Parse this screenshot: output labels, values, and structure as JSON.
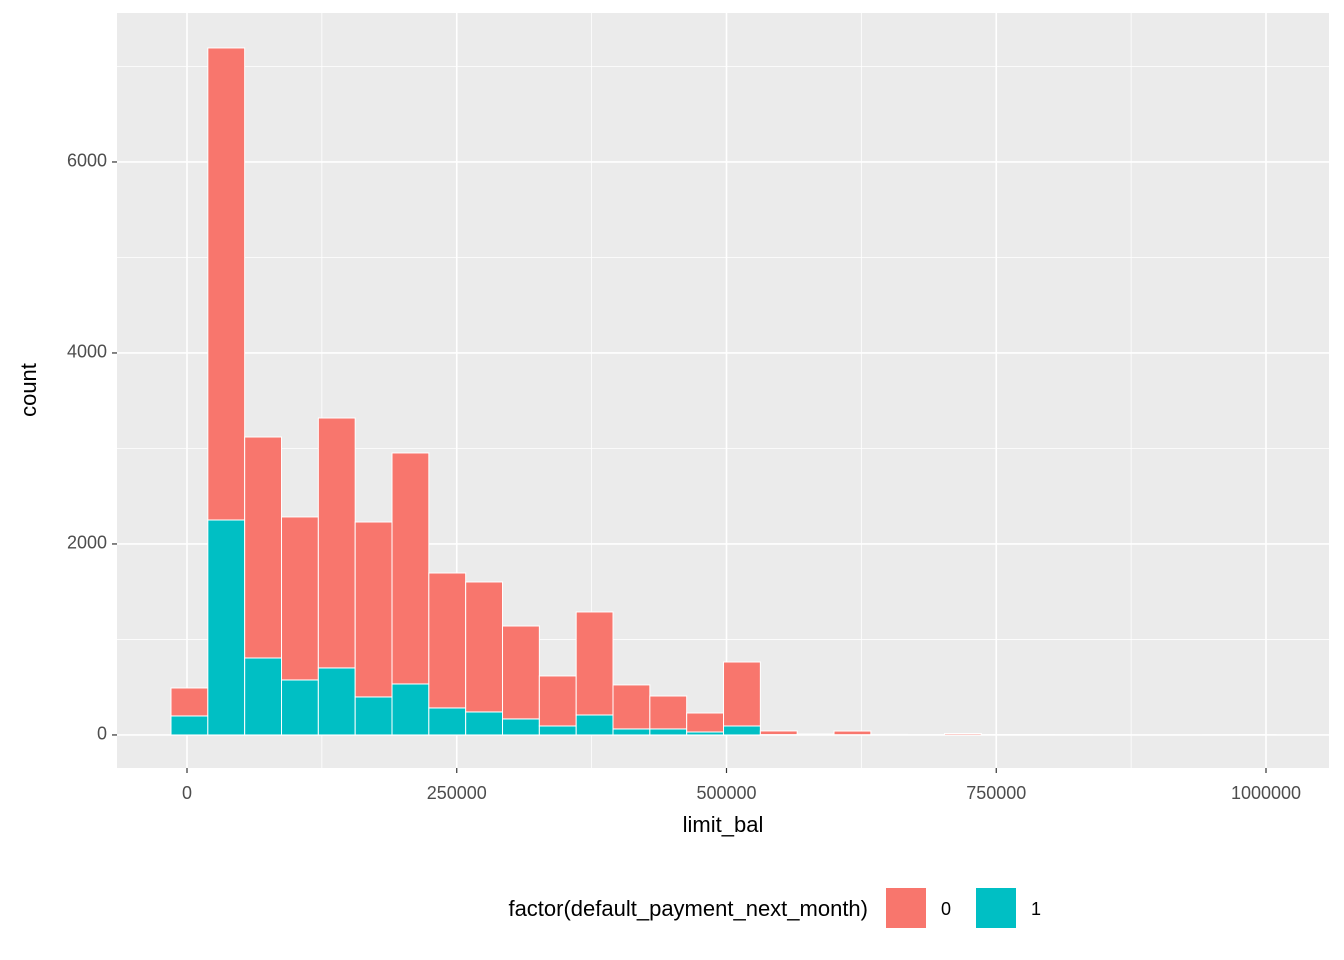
{
  "chart_data": {
    "type": "histogram",
    "x_label": "limit_bal",
    "y_label": "count",
    "legend_title": "factor(default_payment_next_month)",
    "legend_position": "bottom",
    "bins": [
      -14828,
      19310,
      53448,
      87586,
      121724,
      155862,
      190000,
      224138,
      258276,
      292414,
      326552,
      360690,
      394828,
      428966,
      463104,
      497242,
      531380,
      565518,
      599656,
      633794,
      667932,
      702070,
      736208,
      770346,
      804484,
      838622,
      872760,
      906898,
      941036,
      975174,
      1009312
    ],
    "series": [
      {
        "name": "0",
        "color": "#F8766D",
        "values": [
          293,
          4943,
          2314,
          1707,
          2617,
          1832,
          2419,
          1413,
          1361,
          973,
          524,
          1079,
          461,
          345,
          199,
          670,
          38,
          8,
          38,
          5,
          3,
          14,
          5,
          4,
          2,
          1,
          0,
          0,
          1,
          3
        ]
      },
      {
        "name": "1",
        "color": "#00BFC4",
        "values": [
          199,
          2251,
          806,
          576,
          702,
          398,
          534,
          283,
          241,
          168,
          94,
          209,
          63,
          63,
          31,
          94,
          4,
          2,
          3,
          1,
          0,
          1,
          0,
          0,
          0,
          0,
          0,
          0,
          0,
          0
        ]
      }
    ],
    "xlim": [
      -64875,
      1058388
    ],
    "ylim": [
      -346,
      7560
    ],
    "xticks": [
      0,
      250000,
      500000,
      750000,
      1000000
    ],
    "yticks": [
      0,
      2000,
      4000,
      6000
    ],
    "grid": true
  }
}
